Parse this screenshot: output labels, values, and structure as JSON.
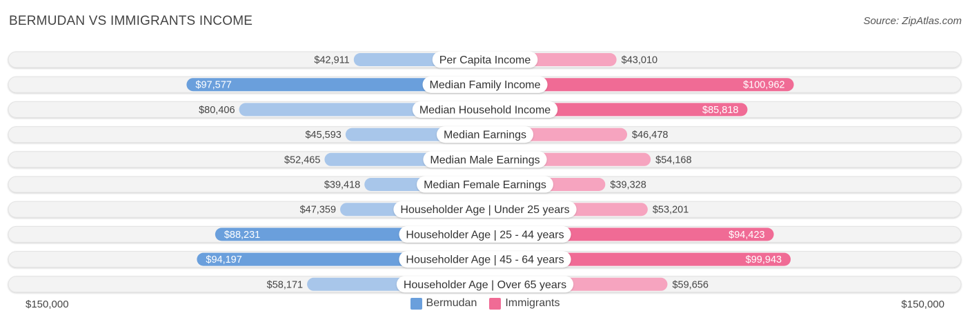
{
  "title": "BERMUDAN VS IMMIGRANTS INCOME",
  "source": "Source: ZipAtlas.com",
  "axis": {
    "left_label": "$150,000",
    "right_label": "$150,000"
  },
  "colors": {
    "bermudan_dark": "#6a9fdc",
    "bermudan_light": "#a8c6ea",
    "immigrants_dark": "#f06b95",
    "immigrants_light": "#f6a4bf",
    "track": "#eeeeee"
  },
  "legend": [
    {
      "label": "Bermudan",
      "color": "#6a9fdc"
    },
    {
      "label": "Immigrants",
      "color": "#f06b95"
    }
  ],
  "chart_data": {
    "type": "bar",
    "orientation": "horizontal-diverging",
    "max": 150000,
    "categories": [
      "Per Capita Income",
      "Median Family Income",
      "Median Household Income",
      "Median Earnings",
      "Median Male Earnings",
      "Median Female Earnings",
      "Householder Age | Under 25 years",
      "Householder Age | 25 - 44 years",
      "Householder Age | 45 - 64 years",
      "Householder Age | Over 65 years"
    ],
    "series": [
      {
        "name": "Bermudan",
        "values": [
          42911,
          97577,
          80406,
          45593,
          52465,
          39418,
          47359,
          88231,
          94197,
          58171
        ],
        "labels": [
          "$42,911",
          "$97,577",
          "$80,406",
          "$45,593",
          "$52,465",
          "$39,418",
          "$47,359",
          "$88,231",
          "$94,197",
          "$58,171"
        ]
      },
      {
        "name": "Immigrants",
        "values": [
          43010,
          100962,
          85818,
          46478,
          54168,
          39328,
          53201,
          94423,
          99943,
          59656
        ],
        "labels": [
          "$43,010",
          "$100,962",
          "$85,818",
          "$46,478",
          "$54,168",
          "$39,328",
          "$53,201",
          "$94,423",
          "$99,943",
          "$59,656"
        ]
      }
    ]
  }
}
